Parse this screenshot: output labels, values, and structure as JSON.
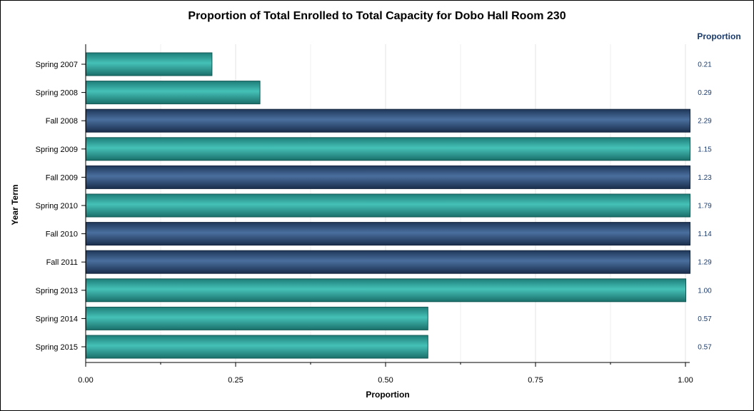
{
  "chart_data": {
    "type": "bar",
    "orientation": "horizontal",
    "title": "Proportion of Total Enrolled to Total Capacity for Dobo Hall Room 230",
    "xlabel": "Proportion",
    "ylabel": "Year Term",
    "value_column_header": "Proportion",
    "xlim": [
      0,
      1
    ],
    "x_ticks": [
      "0.00",
      "0.25",
      "0.50",
      "0.75",
      "1.00"
    ],
    "categories": [
      "Spring 2007",
      "Spring 2008",
      "Fall 2008",
      "Spring 2009",
      "Fall 2009",
      "Spring 2010",
      "Fall 2010",
      "Fall 2011",
      "Spring 2013",
      "Spring 2014",
      "Spring 2015"
    ],
    "values": [
      0.21,
      0.29,
      2.29,
      1.15,
      1.23,
      1.79,
      1.14,
      1.29,
      1.0,
      0.57,
      0.57
    ],
    "value_labels": [
      "0.21",
      "0.29",
      "2.29",
      "1.15",
      "1.23",
      "1.79",
      "1.14",
      "1.29",
      "1.00",
      "0.57",
      "0.57"
    ],
    "colors": {
      "spring": "#2fa8a0",
      "fall": "#2e4f7c"
    },
    "grid": true
  }
}
